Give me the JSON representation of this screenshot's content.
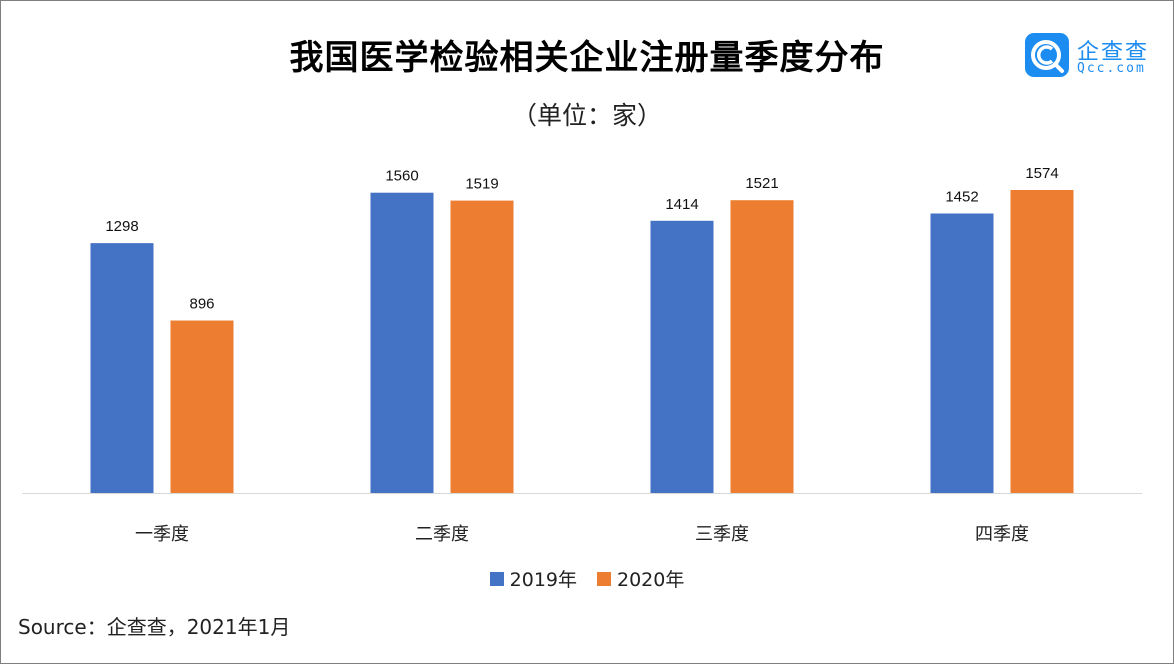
{
  "title": "我国医学检验相关企业注册量季度分布",
  "subtitle": "（单位：家）",
  "logo": {
    "name": "企查查",
    "domain": "Qcc.com",
    "color": "#1d8cf0"
  },
  "source": "Source：企查查，2021年1月",
  "chart_data": {
    "type": "bar",
    "categories": [
      "一季度",
      "二季度",
      "三季度",
      "四季度"
    ],
    "series": [
      {
        "name": "2019年",
        "color": "#4472c4",
        "values": [
          1298,
          1560,
          1414,
          1452
        ]
      },
      {
        "name": "2020年",
        "color": "#ed7d31",
        "values": [
          896,
          1519,
          1521,
          1574
        ]
      }
    ],
    "ylim": [
      0,
      1600
    ],
    "grid": false,
    "legend": "bottom",
    "data_labels": true
  }
}
